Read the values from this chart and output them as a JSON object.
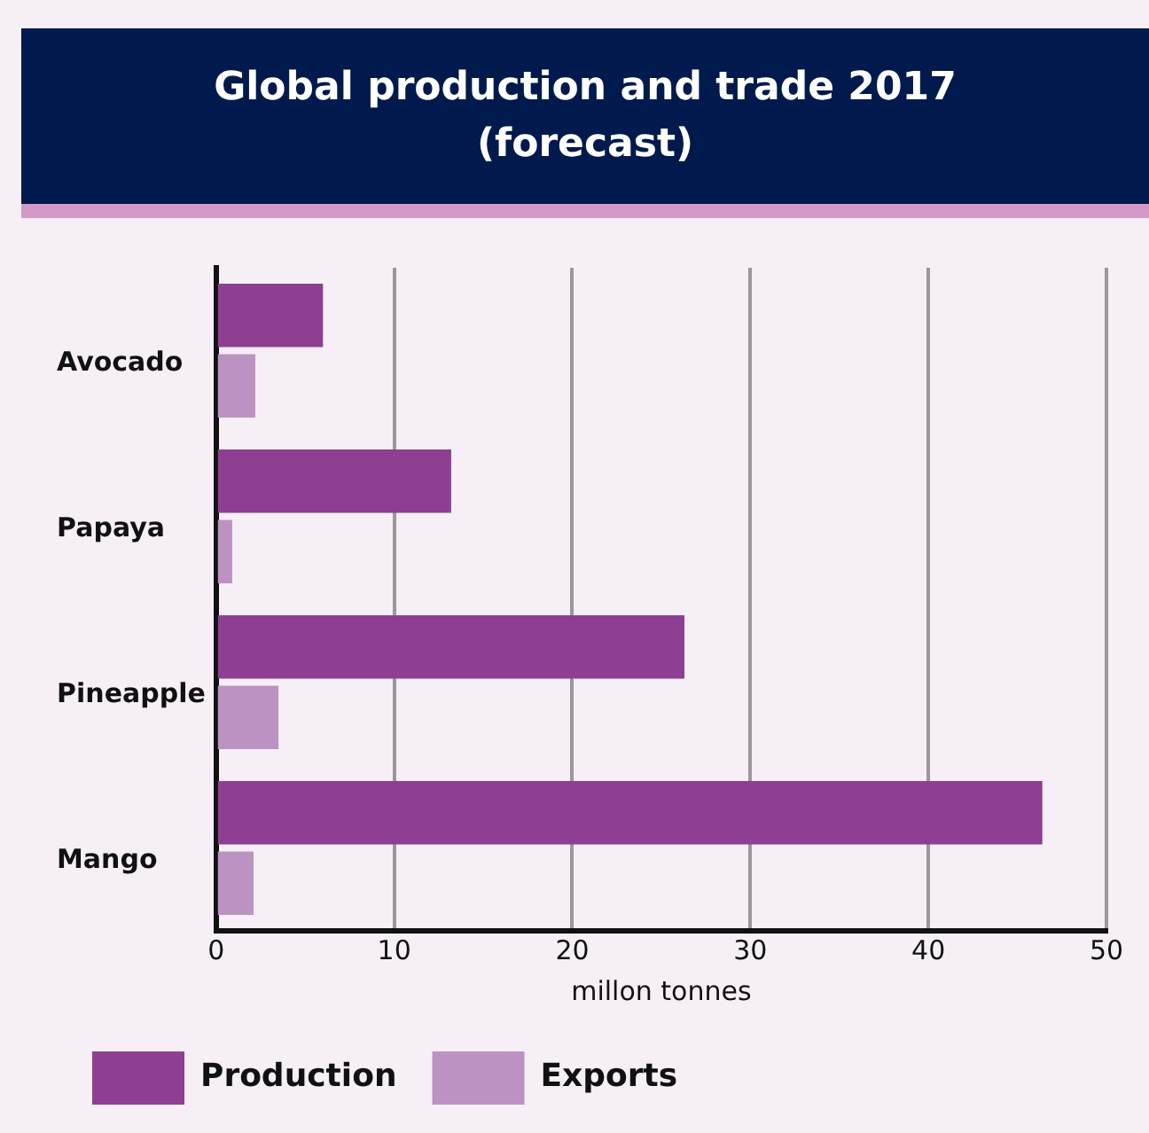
{
  "chart_data": {
    "type": "bar",
    "orientation": "horizontal",
    "title": "Global production and trade 2017\n(forecast)",
    "categories": [
      "Avocado",
      "Papaya",
      "Pineapple",
      "Mango"
    ],
    "series": [
      {
        "name": "Production",
        "color": "#8e3f91",
        "values": [
          6.0,
          13.2,
          26.3,
          46.4
        ]
      },
      {
        "name": "Exports",
        "color": "#bc92c2",
        "values": [
          2.2,
          0.9,
          3.5,
          2.1
        ]
      }
    ],
    "xlabel": "millon tonnes",
    "xlim": [
      0,
      50
    ],
    "xticks": [
      0,
      10,
      20,
      30,
      40,
      50
    ],
    "grid": "x",
    "legend": "bottom"
  }
}
